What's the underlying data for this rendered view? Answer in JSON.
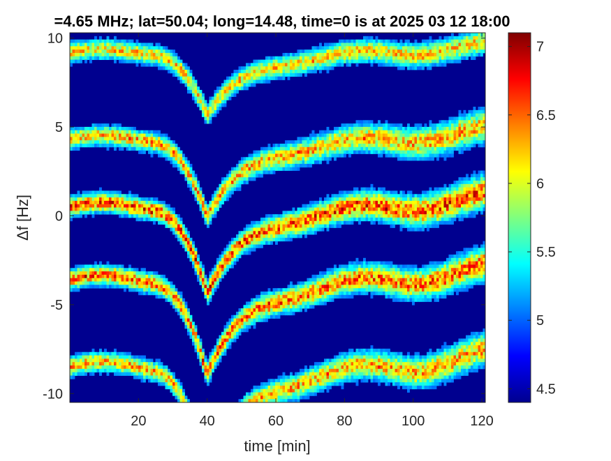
{
  "chart_data": {
    "type": "heatmap",
    "title": "=4.65 MHz;  lat=50.04; long=14.48, time=0 is at 2025 03 12 18:00",
    "xlabel": "time [min]",
    "ylabel": "Δf [Hz]",
    "xlim": [
      0,
      121
    ],
    "ylim": [
      -10.5,
      10.3
    ],
    "xticks": [
      "20",
      "40",
      "60",
      "80",
      "100",
      "120"
    ],
    "xtick_values": [
      20,
      40,
      60,
      80,
      100,
      120
    ],
    "yticks": [
      "10",
      "5",
      "0",
      "-5",
      "-10"
    ],
    "ytick_values": [
      10,
      5,
      0,
      -5,
      -10
    ],
    "colorbar": {
      "range": [
        4.4,
        7.1
      ],
      "ticks": [
        "7",
        "6.5",
        "6",
        "5.5",
        "5",
        "4.5"
      ],
      "tick_values": [
        7,
        6.5,
        6,
        5.5,
        5,
        4.5
      ],
      "colormap": "jet"
    },
    "background_color": "#00008f",
    "traces": [
      {
        "offset": 9.2,
        "strength": 0.75
      },
      {
        "offset": 4.3,
        "strength": 0.8
      },
      {
        "offset": 0.5,
        "strength": 0.95
      },
      {
        "offset": -3.6,
        "strength": 0.9
      },
      {
        "offset": -8.5,
        "strength": 0.8
      }
    ],
    "dip": {
      "time": 40,
      "depth": 4.0
    }
  }
}
